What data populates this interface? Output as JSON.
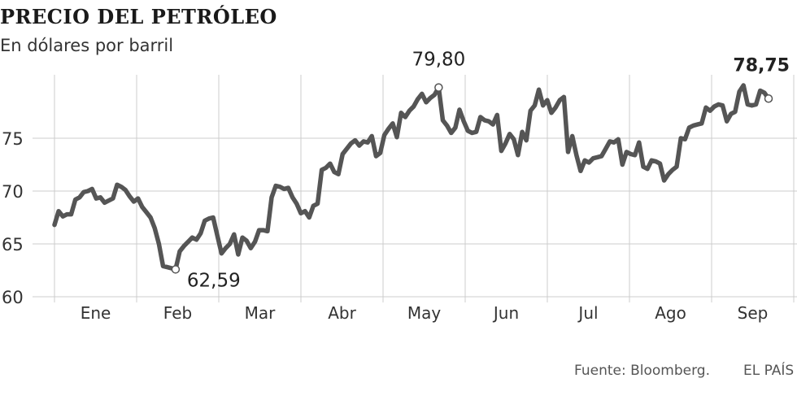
{
  "header": {
    "title": "PRECIO DEL PETRÓLEO",
    "subtitle": "En dólares por barril"
  },
  "footer": {
    "source": "Fuente: Bloomberg.",
    "brand": "EL PAÍS"
  },
  "colors": {
    "line": "#555555",
    "grid": "#cccccc",
    "text": "#333333"
  },
  "chart_data": {
    "type": "line",
    "title": "PRECIO DEL PETRÓLEO",
    "ylabel": "En dólares por barril",
    "ylim": [
      60,
      81
    ],
    "yticks": [
      60,
      65,
      70,
      75
    ],
    "ytick_labels": [
      "60",
      "65",
      "70",
      "75"
    ],
    "months": [
      "Ene",
      "Feb",
      "Mar",
      "Abr",
      "May",
      "Jun",
      "Jul",
      "Ago",
      "Sep"
    ],
    "grid": true,
    "series": [
      {
        "values": [
          66.8,
          68.1,
          67.6,
          67.8,
          67.8,
          69.2,
          69.4,
          69.9,
          70.0,
          70.2,
          69.3,
          69.4,
          68.9,
          69.1,
          69.3,
          70.6,
          70.4,
          70.1,
          69.5,
          69.0,
          69.3,
          68.5,
          68.0,
          67.5,
          66.5,
          65.0,
          62.9,
          62.8,
          62.7,
          62.6,
          64.3,
          64.8,
          65.2,
          65.6,
          65.4,
          66.0,
          67.2,
          67.4,
          67.5,
          65.8,
          64.1,
          64.6,
          65.0,
          65.9,
          64.0,
          65.6,
          65.3,
          64.6,
          65.2,
          66.3,
          66.3,
          66.2,
          69.4,
          70.5,
          70.4,
          70.2,
          70.3,
          69.4,
          68.8,
          67.9,
          68.1,
          67.5,
          68.6,
          68.8,
          72.0,
          72.2,
          72.6,
          71.8,
          71.6,
          73.5,
          74.0,
          74.5,
          74.8,
          74.3,
          74.7,
          74.6,
          75.2,
          73.3,
          73.6,
          75.3,
          75.9,
          76.4,
          75.1,
          77.4,
          77.0,
          77.6,
          78.0,
          78.7,
          79.2,
          78.4,
          78.8,
          79.1,
          79.8,
          76.7,
          76.2,
          75.5,
          76.0,
          77.7,
          76.6,
          75.7,
          75.5,
          75.6,
          77.0,
          76.7,
          76.6,
          76.3,
          77.2,
          73.8,
          74.5,
          75.4,
          74.9,
          73.4,
          75.6,
          74.8,
          77.6,
          78.1,
          79.6,
          78.1,
          78.6,
          77.4,
          77.9,
          78.6,
          78.9,
          73.7,
          75.2,
          73.4,
          71.9,
          72.9,
          72.7,
          73.1,
          73.2,
          73.3,
          74.0,
          74.7,
          74.6,
          74.9,
          72.5,
          73.7,
          73.5,
          73.4,
          74.6,
          72.3,
          72.1,
          72.9,
          72.8,
          72.6,
          71.0,
          71.6,
          72.0,
          72.3,
          75.0,
          74.9,
          76.0,
          76.2,
          76.3,
          76.4,
          77.9,
          77.6,
          78.0,
          78.2,
          78.1,
          76.6,
          77.3,
          77.5,
          79.4,
          80.0,
          78.2,
          78.1,
          78.2,
          79.5,
          79.3,
          78.75
        ]
      }
    ],
    "annotations": [
      {
        "label": "62,59",
        "index": 29,
        "value": 62.59
      },
      {
        "label": "79,80",
        "index": 92,
        "value": 79.8
      },
      {
        "label": "78,75",
        "index": 171,
        "value": 78.75
      }
    ]
  }
}
